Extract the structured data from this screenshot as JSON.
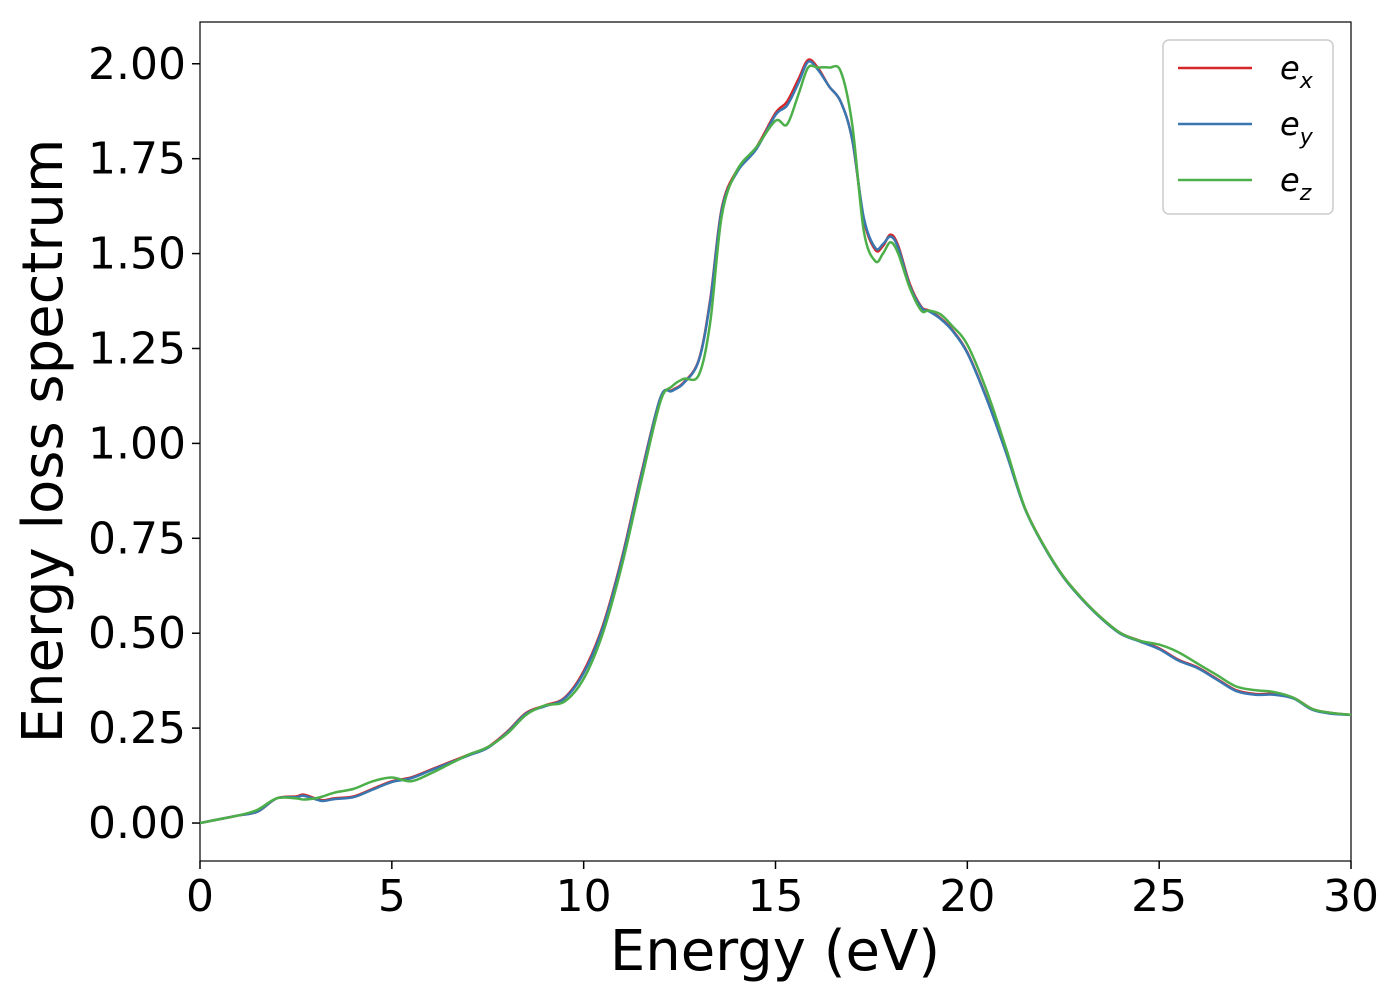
{
  "chart_data": {
    "type": "line",
    "title": "",
    "xlabel": "Energy (eV)",
    "ylabel": "Energy loss spectrum",
    "xlim": [
      0,
      30
    ],
    "ylim": [
      -0.1,
      2.11
    ],
    "xticks": [
      0,
      5,
      10,
      15,
      20,
      25,
      30
    ],
    "xtick_labels": [
      "0",
      "5",
      "10",
      "15",
      "20",
      "25",
      "30"
    ],
    "yticks": [
      0.0,
      0.25,
      0.5,
      0.75,
      1.0,
      1.25,
      1.5,
      1.75,
      2.0
    ],
    "ytick_labels": [
      "0.00",
      "0.25",
      "0.50",
      "0.75",
      "1.00",
      "1.25",
      "1.50",
      "1.75",
      "2.00"
    ],
    "grid": false,
    "legend_position": "top-right",
    "series": [
      {
        "name": "e_x",
        "legend_base": "e",
        "legend_sub": "x",
        "color": "#d62728",
        "x": [
          0,
          0.5,
          1,
          1.5,
          2,
          2.5,
          2.7,
          3,
          3.2,
          3.5,
          4,
          4.5,
          5,
          5.5,
          6,
          6.5,
          7,
          7.5,
          8,
          8.5,
          9,
          9.5,
          10,
          10.5,
          11,
          11.5,
          12,
          12.3,
          12.6,
          13,
          13.3,
          13.6,
          14,
          14.5,
          15,
          15.3,
          15.6,
          15.85,
          16.1,
          16.4,
          16.7,
          17,
          17.3,
          17.6,
          17.8,
          18,
          18.2,
          18.5,
          18.8,
          19,
          19.3,
          19.6,
          20,
          20.5,
          21,
          21.5,
          22,
          22.5,
          23,
          23.5,
          24,
          24.5,
          25,
          25.5,
          26,
          26.5,
          27,
          27.5,
          28,
          28.5,
          29,
          29.5,
          30
        ],
        "y": [
          0.0,
          0.01,
          0.02,
          0.03,
          0.065,
          0.07,
          0.075,
          0.065,
          0.06,
          0.065,
          0.07,
          0.09,
          0.11,
          0.12,
          0.14,
          0.16,
          0.18,
          0.2,
          0.24,
          0.29,
          0.31,
          0.33,
          0.4,
          0.52,
          0.7,
          0.92,
          1.12,
          1.14,
          1.16,
          1.22,
          1.38,
          1.62,
          1.72,
          1.78,
          1.87,
          1.9,
          1.96,
          2.01,
          1.99,
          1.94,
          1.9,
          1.8,
          1.59,
          1.51,
          1.52,
          1.55,
          1.52,
          1.42,
          1.36,
          1.35,
          1.33,
          1.3,
          1.24,
          1.12,
          0.98,
          0.83,
          0.73,
          0.65,
          0.59,
          0.54,
          0.5,
          0.48,
          0.46,
          0.43,
          0.41,
          0.38,
          0.35,
          0.34,
          0.34,
          0.33,
          0.3,
          0.29,
          0.285
        ]
      },
      {
        "name": "e_y",
        "legend_base": "e",
        "legend_sub": "y",
        "color": "#3a77b0",
        "x": [
          0,
          0.5,
          1,
          1.5,
          2,
          2.5,
          2.7,
          3,
          3.2,
          3.5,
          4,
          4.5,
          5,
          5.5,
          6,
          6.5,
          7,
          7.5,
          8,
          8.5,
          9,
          9.5,
          10,
          10.5,
          11,
          11.5,
          12,
          12.3,
          12.6,
          13,
          13.3,
          13.6,
          14,
          14.5,
          15,
          15.3,
          15.6,
          15.85,
          16.1,
          16.4,
          16.7,
          17,
          17.3,
          17.6,
          17.8,
          18,
          18.2,
          18.5,
          18.8,
          19,
          19.3,
          19.6,
          20,
          20.5,
          21,
          21.5,
          22,
          22.5,
          23,
          23.5,
          24,
          24.5,
          25,
          25.5,
          26,
          26.5,
          27,
          27.5,
          28,
          28.5,
          29,
          29.5,
          30
        ],
        "y": [
          0.0,
          0.01,
          0.02,
          0.03,
          0.065,
          0.068,
          0.072,
          0.063,
          0.058,
          0.063,
          0.068,
          0.088,
          0.108,
          0.118,
          0.138,
          0.158,
          0.178,
          0.198,
          0.238,
          0.288,
          0.308,
          0.328,
          0.395,
          0.515,
          0.695,
          0.915,
          1.12,
          1.138,
          1.158,
          1.218,
          1.375,
          1.615,
          1.715,
          1.775,
          1.865,
          1.89,
          1.95,
          2.005,
          1.985,
          1.94,
          1.9,
          1.8,
          1.595,
          1.515,
          1.525,
          1.545,
          1.515,
          1.415,
          1.358,
          1.348,
          1.328,
          1.298,
          1.238,
          1.118,
          0.978,
          0.828,
          0.728,
          0.648,
          0.588,
          0.538,
          0.498,
          0.478,
          0.458,
          0.428,
          0.408,
          0.378,
          0.348,
          0.338,
          0.338,
          0.328,
          0.298,
          0.288,
          0.285
        ]
      },
      {
        "name": "e_z",
        "legend_base": "e",
        "legend_sub": "z",
        "color": "#4daf4a",
        "x": [
          0,
          0.5,
          1,
          1.5,
          2,
          2.5,
          2.7,
          3,
          3.2,
          3.5,
          4,
          4.5,
          5,
          5.5,
          6,
          6.5,
          7,
          7.5,
          8,
          8.5,
          9,
          9.5,
          10,
          10.5,
          11,
          11.5,
          12,
          12.3,
          12.6,
          13,
          13.3,
          13.6,
          14,
          14.5,
          15,
          15.3,
          15.6,
          15.85,
          16.1,
          16.4,
          16.7,
          17,
          17.3,
          17.6,
          17.8,
          18,
          18.2,
          18.5,
          18.8,
          19,
          19.3,
          19.6,
          20,
          20.5,
          21,
          21.5,
          22,
          22.5,
          23,
          23.5,
          24,
          24.5,
          25,
          25.5,
          26,
          26.5,
          27,
          27.5,
          28,
          28.5,
          29,
          29.5,
          30
        ],
        "y": [
          0.0,
          0.01,
          0.02,
          0.035,
          0.065,
          0.065,
          0.062,
          0.065,
          0.07,
          0.08,
          0.09,
          0.11,
          0.12,
          0.11,
          0.13,
          0.155,
          0.18,
          0.2,
          0.235,
          0.285,
          0.31,
          0.32,
          0.38,
          0.5,
          0.68,
          0.9,
          1.11,
          1.15,
          1.17,
          1.18,
          1.32,
          1.6,
          1.72,
          1.78,
          1.85,
          1.84,
          1.92,
          1.99,
          1.99,
          1.99,
          1.98,
          1.84,
          1.56,
          1.48,
          1.5,
          1.53,
          1.5,
          1.41,
          1.35,
          1.35,
          1.34,
          1.31,
          1.26,
          1.14,
          0.99,
          0.83,
          0.73,
          0.65,
          0.59,
          0.54,
          0.5,
          0.48,
          0.47,
          0.45,
          0.42,
          0.39,
          0.36,
          0.35,
          0.345,
          0.33,
          0.3,
          0.29,
          0.285
        ]
      }
    ]
  }
}
